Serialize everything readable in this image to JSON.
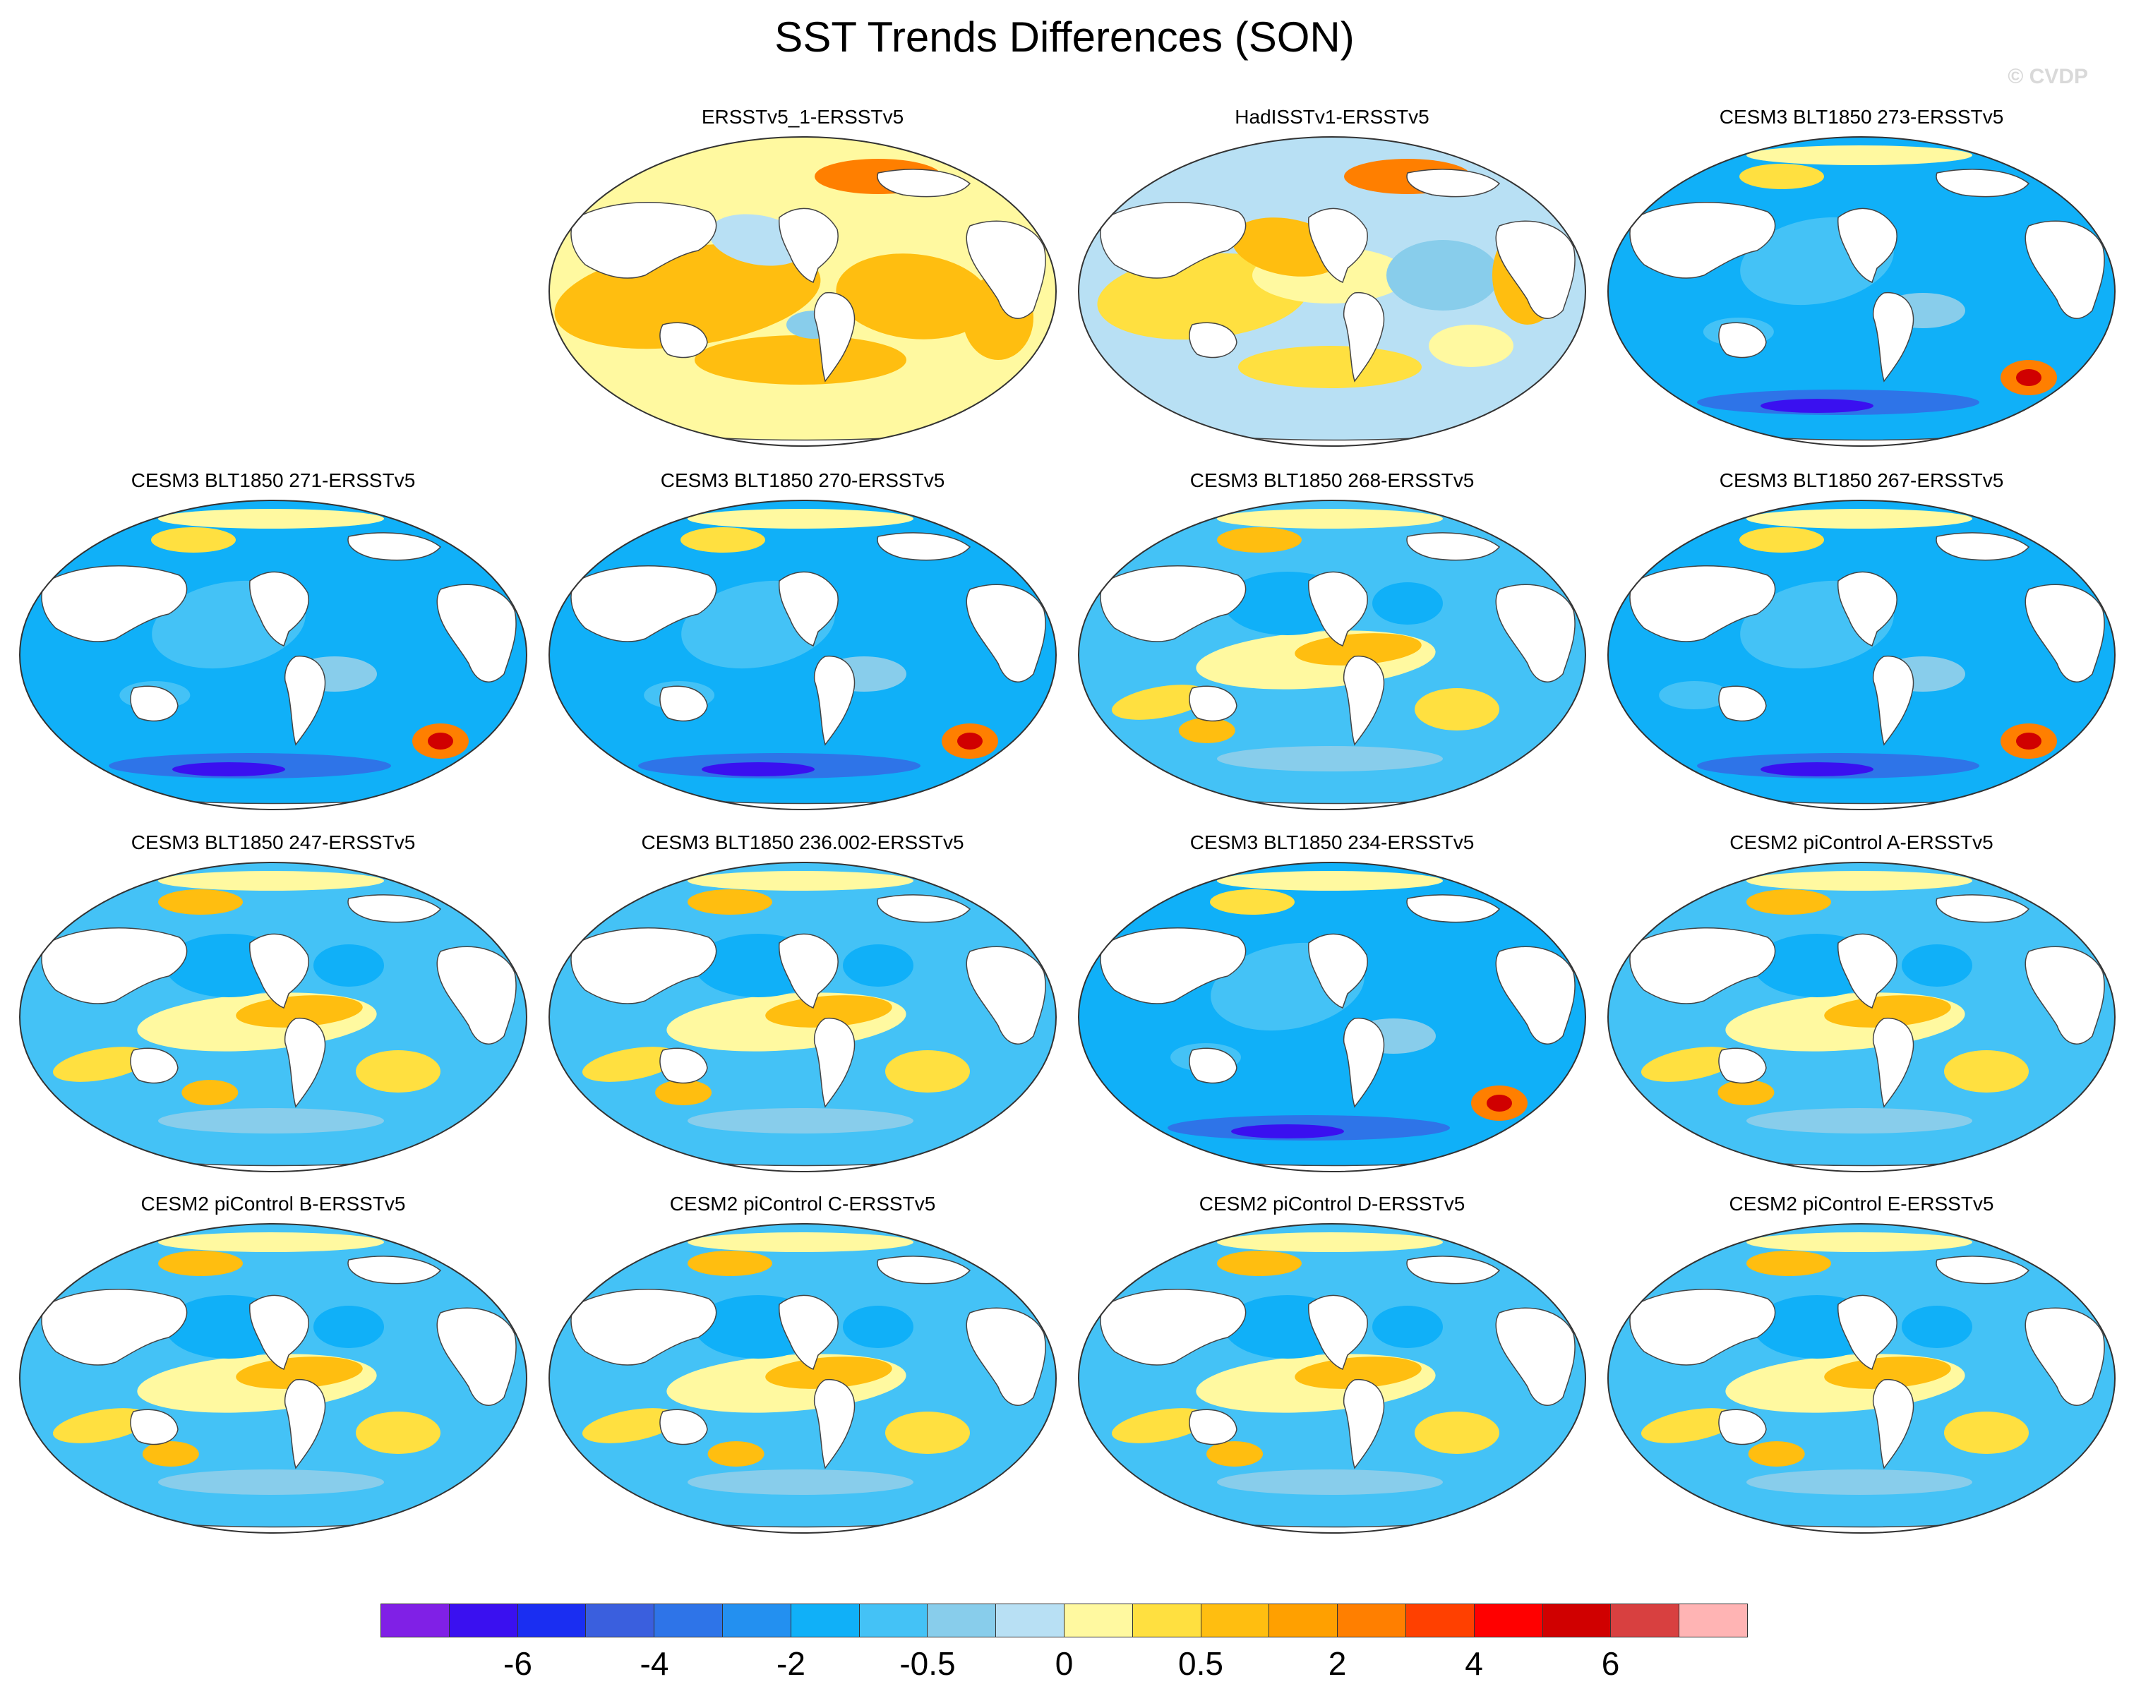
{
  "title": "SST Trends Differences (SON)",
  "watermark": "© CVDP",
  "panels": [
    {
      "label": "",
      "empty": true
    },
    {
      "label": "ERSSTv5_1-ERSSTv5",
      "pattern": "warm"
    },
    {
      "label": "HadISSTv1-ERSSTv5",
      "pattern": "warm-mixed"
    },
    {
      "label": "CESM3 BLT1850 273-ERSSTv5",
      "pattern": "cool"
    },
    {
      "label": "CESM3 BLT1850 271-ERSSTv5",
      "pattern": "cool"
    },
    {
      "label": "CESM3 BLT1850 270-ERSSTv5",
      "pattern": "cool"
    },
    {
      "label": "CESM3 BLT1850 268-ERSSTv5",
      "pattern": "cool-mixed"
    },
    {
      "label": "CESM3 BLT1850 267-ERSSTv5",
      "pattern": "cool"
    },
    {
      "label": "CESM3 BLT1850 247-ERSSTv5",
      "pattern": "cool-mixed"
    },
    {
      "label": "CESM3 BLT1850 236.002-ERSSTv5",
      "pattern": "cool-mixed"
    },
    {
      "label": "CESM3 BLT1850 234-ERSSTv5",
      "pattern": "cool"
    },
    {
      "label": "CESM2 piControl A-ERSSTv5",
      "pattern": "cool-mixed"
    },
    {
      "label": "CESM2 piControl B-ERSSTv5",
      "pattern": "cool-mixed"
    },
    {
      "label": "CESM2 piControl C-ERSSTv5",
      "pattern": "cool-mixed"
    },
    {
      "label": "CESM2 piControl D-ERSSTv5",
      "pattern": "cool-mixed"
    },
    {
      "label": "CESM2 piControl E-ERSSTv5",
      "pattern": "cool-mixed"
    }
  ],
  "colorbar": {
    "colors": [
      "#8020e6",
      "#3a10f0",
      "#1a2ef2",
      "#3a5fde",
      "#2e74e8",
      "#2390f0",
      "#10b0f8",
      "#44c2f6",
      "#88cdeb",
      "#b8e0f4",
      "#fff9a0",
      "#ffe040",
      "#ffbe10",
      "#ffa000",
      "#ff7f00",
      "#ff4000",
      "#ff0000",
      "#d00000",
      "#d84040",
      "#ffb4b4"
    ],
    "tick_labels": [
      "-6",
      "-4",
      "-2",
      "-0.5",
      "0",
      "0.5",
      "2",
      "4",
      "6"
    ],
    "tick_boundaries": [
      2,
      4,
      6,
      8,
      10,
      12,
      14,
      16,
      18
    ]
  }
}
